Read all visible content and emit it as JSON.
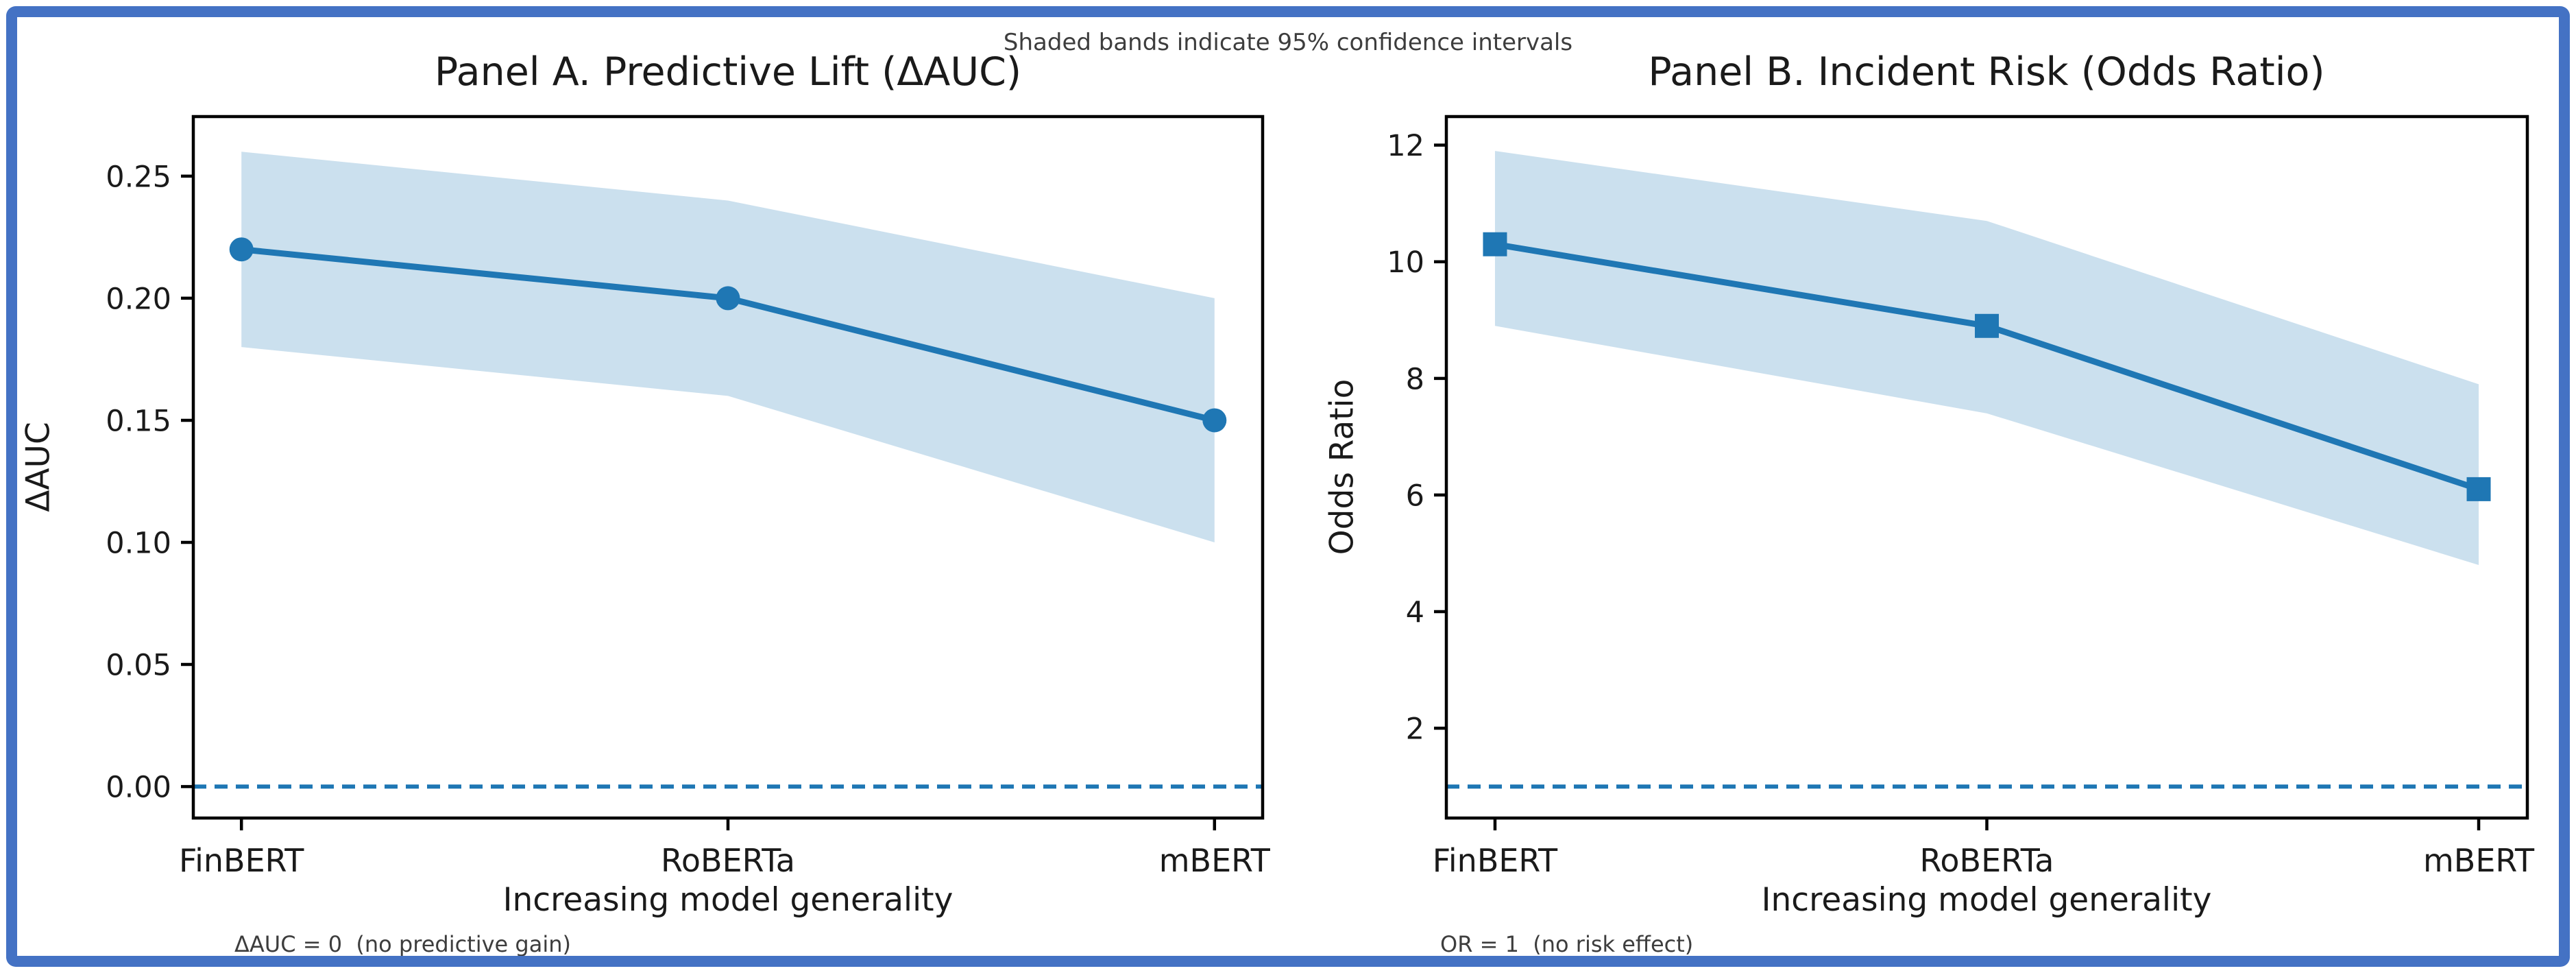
{
  "figure": {
    "note": "Shaded bands indicate 95% confidence intervals",
    "border_color": "#4472c4",
    "line_color": "#1f77b4",
    "band_color": "rgba(31, 119, 180, 0.23)",
    "spine_color": "#000000",
    "text_color": "#1a1a1a",
    "annotation_color": "#3d3d3d",
    "background": "#ffffff"
  },
  "chart_data": [
    {
      "panel": "A",
      "type": "line",
      "title": "Panel A. Predictive Lift (ΔAUC)",
      "xlabel": "Increasing model generality",
      "ylabel": "ΔAUC",
      "categories": [
        "FinBERT",
        "RoBERTa",
        "mBERT"
      ],
      "series": [
        {
          "name": "ΔAUC",
          "values": [
            0.22,
            0.2,
            0.15
          ]
        }
      ],
      "ci_lower": [
        0.18,
        0.16,
        0.1
      ],
      "ci_upper": [
        0.26,
        0.24,
        0.2
      ],
      "yticks": [
        0.0,
        0.05,
        0.1,
        0.15,
        0.2,
        0.25
      ],
      "ytick_labels": [
        "0.00",
        "0.05",
        "0.10",
        "0.15",
        "0.20",
        "0.25"
      ],
      "ylim": [
        -0.0129,
        0.2744
      ],
      "grid": false,
      "legend": "none",
      "reference_line": 0.0,
      "reference_annotation": "ΔAUC = 0  (no predictive gain)",
      "marker": "circle",
      "band_meaning": "95% confidence interval"
    },
    {
      "panel": "B",
      "type": "line",
      "title": "Panel B. Incident Risk (Odds Ratio)",
      "xlabel": "Increasing model generality",
      "ylabel": "Odds Ratio",
      "categories": [
        "FinBERT",
        "RoBERTa",
        "mBERT"
      ],
      "series": [
        {
          "name": "Odds Ratio",
          "values": [
            10.3,
            8.9,
            6.1
          ]
        }
      ],
      "ci_lower": [
        8.9,
        7.4,
        4.8
      ],
      "ci_upper": [
        11.9,
        10.7,
        7.9
      ],
      "yticks": [
        2,
        4,
        6,
        8,
        10,
        12
      ],
      "ytick_labels": [
        "2",
        "4",
        "6",
        "8",
        "10",
        "12"
      ],
      "ylim": [
        0.46,
        12.49
      ],
      "grid": false,
      "legend": "none",
      "reference_line": 1.0,
      "reference_annotation": "OR = 1  (no risk effect)",
      "marker": "square",
      "band_meaning": "95% confidence interval"
    }
  ]
}
